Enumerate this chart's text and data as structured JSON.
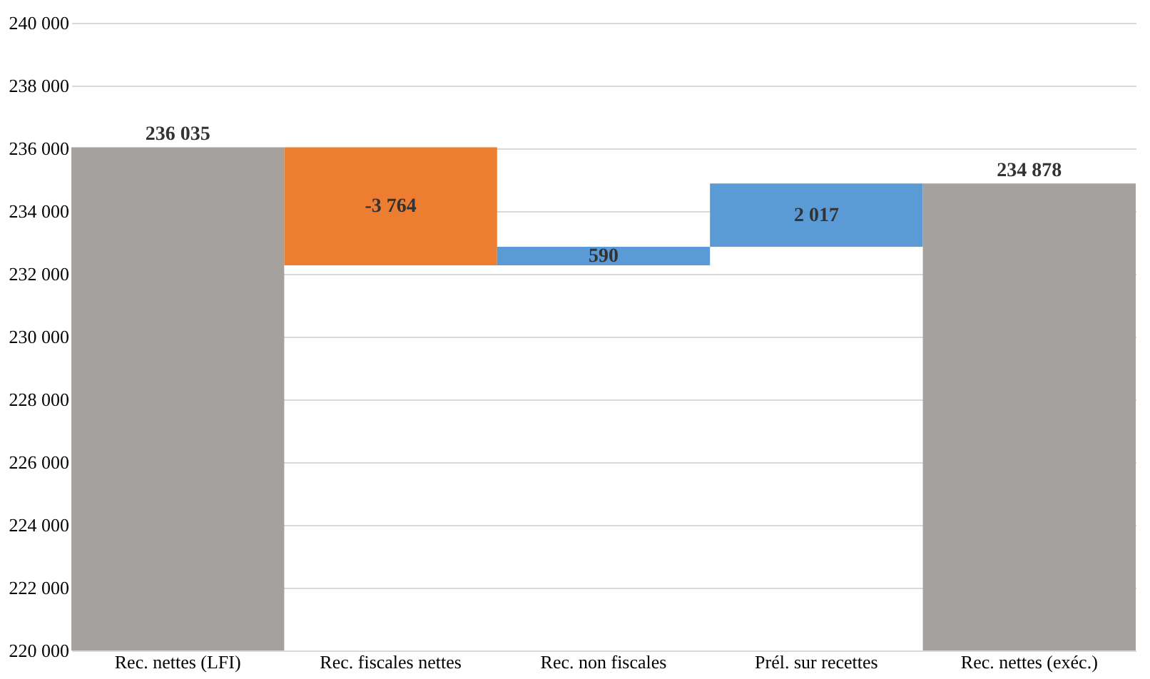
{
  "chart_data": {
    "type": "bar",
    "categories": [
      "Rec. nettes (LFI)",
      "Rec. fiscales nettes",
      "Rec. non fiscales",
      "Prél. sur recettes",
      "Rec. nettes (exéc.)"
    ],
    "values": [
      236035,
      -3764,
      590,
      2017,
      234878
    ],
    "base": [
      null,
      236035,
      232271,
      232861,
      null
    ],
    "colors": [
      "#a5a19f",
      "#ed7d31",
      "#5b9bd5",
      "#5b9bd5",
      "#a5a19f"
    ],
    "value_labels": [
      "236 035",
      "-3 764",
      "590",
      "2 017",
      "234 878"
    ],
    "ylim": [
      220000,
      240000
    ],
    "yticks": [
      {
        "value": 220000,
        "label": "220 000"
      },
      {
        "value": 222000,
        "label": "222 000"
      },
      {
        "value": 224000,
        "label": "224 000"
      },
      {
        "value": 226000,
        "label": "226 000"
      },
      {
        "value": 228000,
        "label": "228 000"
      },
      {
        "value": 230000,
        "label": "230 000"
      },
      {
        "value": 232000,
        "label": "232 000"
      },
      {
        "value": 234000,
        "label": "234 000"
      },
      {
        "value": 236000,
        "label": "236 000"
      },
      {
        "value": 238000,
        "label": "238 000"
      },
      {
        "value": 240000,
        "label": "240 000"
      }
    ],
    "grid": "y"
  }
}
